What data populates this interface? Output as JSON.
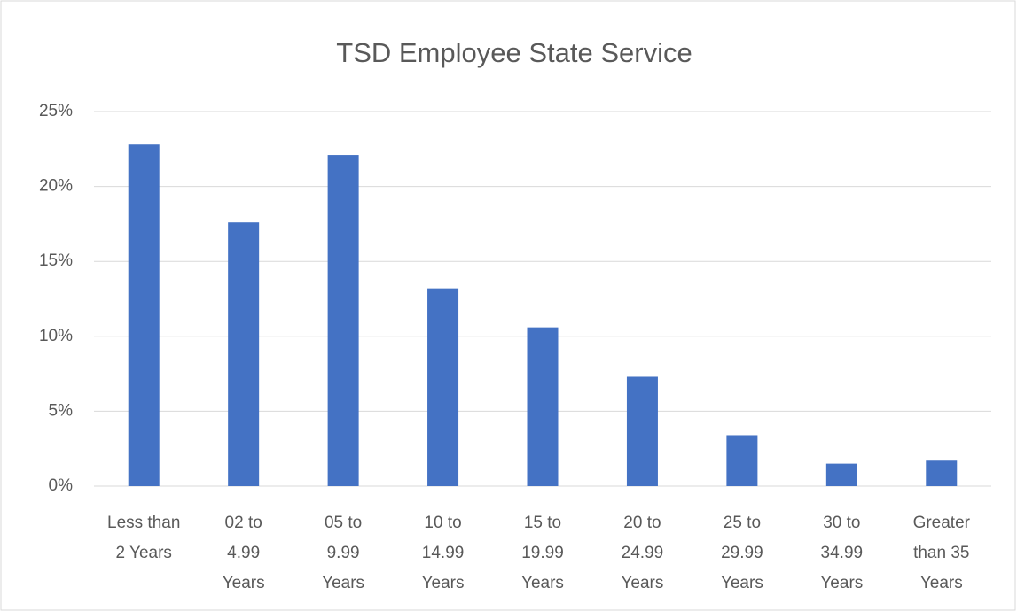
{
  "chart_data": {
    "type": "bar",
    "title": "TSD Employee State Service",
    "categories": [
      "Less than 2 Years",
      "02 to 4.99 Years",
      "05 to 9.99 Years",
      "10 to 14.99 Years",
      "15 to 19.99 Years",
      "20 to 24.99 Years",
      "25 to 29.99 Years",
      "30 to 34.99 Years",
      "Greater than 35 Years"
    ],
    "values": [
      22.8,
      17.6,
      22.1,
      13.2,
      10.6,
      7.3,
      3.4,
      1.5,
      1.7
    ],
    "color": "#4472c4",
    "ylim": [
      0,
      25
    ],
    "yticks": [
      {
        "value": 0,
        "label": "0%"
      },
      {
        "value": 5,
        "label": "5%"
      },
      {
        "value": 10,
        "label": "10%"
      },
      {
        "value": 15,
        "label": "15%"
      },
      {
        "value": 20,
        "label": "20%"
      },
      {
        "value": 25,
        "label": "25%"
      }
    ],
    "grid": true
  }
}
